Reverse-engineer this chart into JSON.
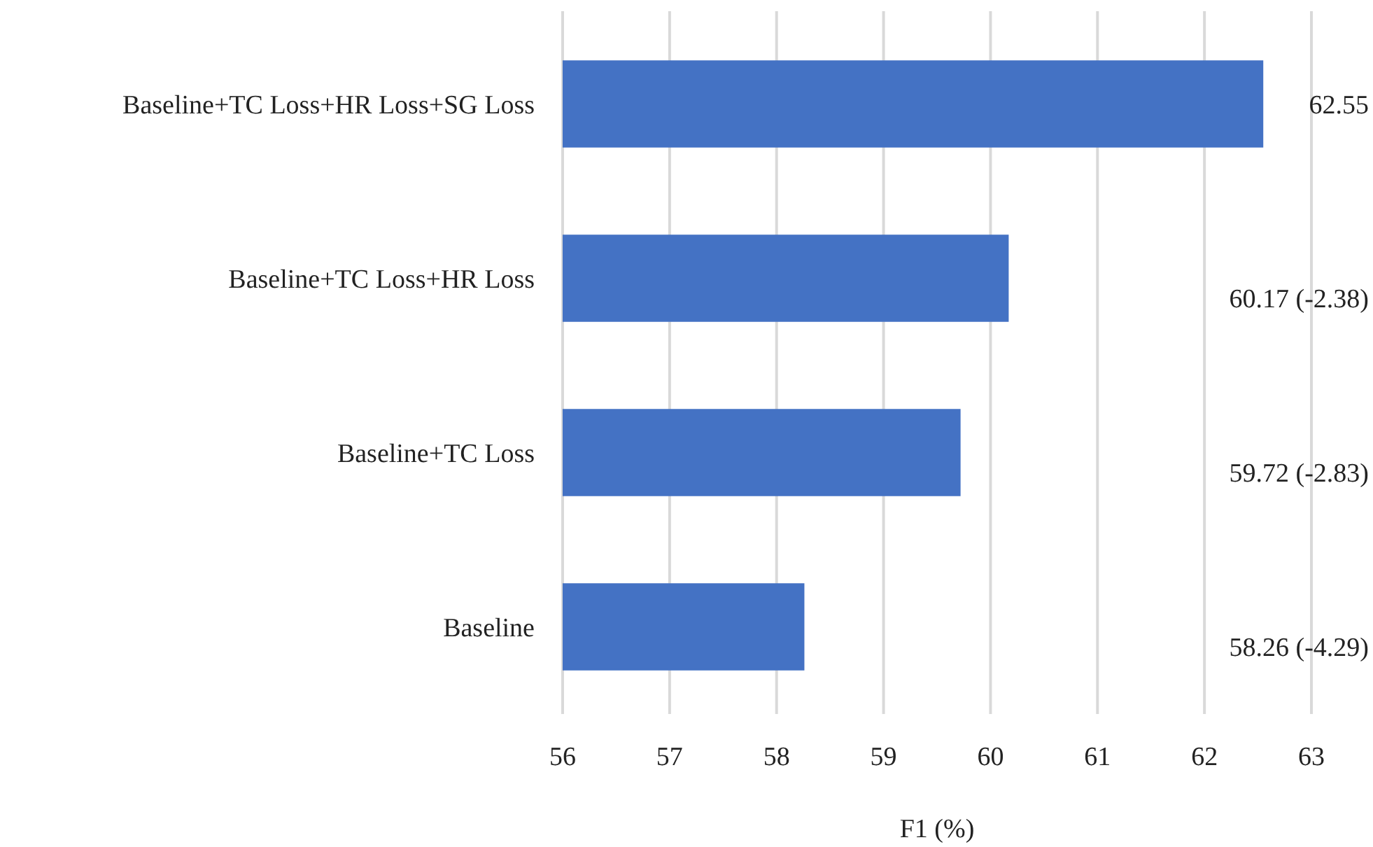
{
  "chart_data": {
    "type": "bar",
    "orientation": "horizontal",
    "xlabel": "F1 (%)",
    "categories": [
      "Baseline+TC Loss+HR Loss+SG Loss",
      "Baseline+TC Loss+HR Loss",
      "Baseline+TC Loss",
      "Baseline"
    ],
    "values": [
      62.55,
      60.17,
      59.72,
      58.26
    ],
    "value_labels": [
      "62.55",
      "60.17 (-2.38)",
      "59.72 (-2.83)",
      "58.26 (-4.29)"
    ],
    "color": "#4472c4",
    "xlim": [
      56,
      63
    ],
    "xticks": [
      56,
      57,
      58,
      59,
      60,
      61,
      62,
      63
    ],
    "grid": "x"
  }
}
